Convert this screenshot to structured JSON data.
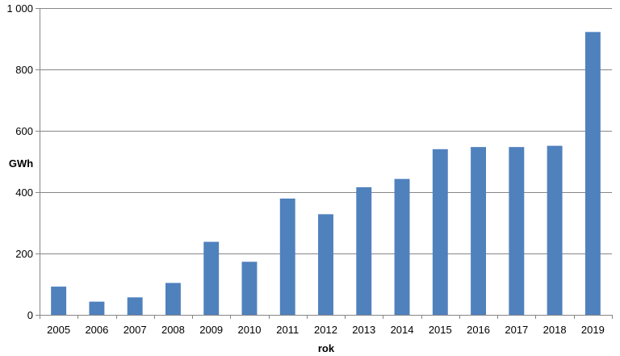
{
  "chart_data": {
    "type": "bar",
    "title": "",
    "xlabel": "rok",
    "ylabel": "GWh",
    "categories": [
      "2005",
      "2006",
      "2007",
      "2008",
      "2009",
      "2010",
      "2011",
      "2012",
      "2013",
      "2014",
      "2015",
      "2016",
      "2017",
      "2018",
      "2019"
    ],
    "values": [
      92,
      43,
      57,
      104,
      238,
      173,
      379,
      328,
      416,
      443,
      540,
      547,
      547,
      551,
      922
    ],
    "ylim": [
      0,
      1000
    ],
    "yticks": [
      0,
      200,
      400,
      600,
      800,
      1000
    ],
    "ytick_labels": [
      "0",
      "200",
      "400",
      "600",
      "800",
      "1 000"
    ],
    "grid": true,
    "legend": "none",
    "colors": {
      "bar": "#4f81bd",
      "grid": "#868686",
      "axis": "#868686"
    }
  }
}
